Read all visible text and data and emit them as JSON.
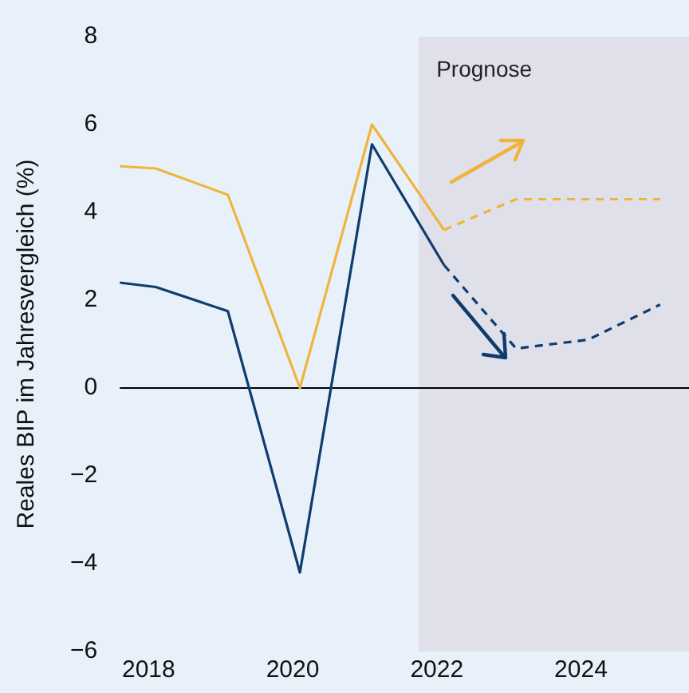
{
  "chart_data": {
    "type": "line",
    "ylabel": "Reales BIP im Jahresvergleich (%)",
    "xlim": [
      2017.6,
      2025.5
    ],
    "xticks": [
      2018,
      2020,
      2022,
      2024
    ],
    "ylim": [
      -6,
      8
    ],
    "yticks": [
      -6,
      -4,
      -2,
      0,
      2,
      4,
      6,
      8
    ],
    "grid": false,
    "legend": false,
    "marker": "none",
    "series": [
      {
        "color": "#f0b43c",
        "line_style": "solid",
        "x": [
          2017.6,
          2018.1,
          2019.1,
          2020.1,
          2021.1,
          2022.1
        ],
        "values": [
          5.05,
          5.0,
          4.4,
          0.0,
          6.0,
          3.6
        ]
      },
      {
        "color": "#f0b43c",
        "line_style": "dashed",
        "x": [
          2022.1,
          2023.1,
          2024.1,
          2025.1
        ],
        "values": [
          3.6,
          4.3,
          4.3,
          4.3
        ]
      },
      {
        "color": "#0f3c6e",
        "line_style": "solid",
        "x": [
          2017.6,
          2018.1,
          2019.1,
          2020.1,
          2021.1,
          2022.1
        ],
        "values": [
          2.4,
          2.3,
          1.75,
          -4.2,
          5.55,
          2.8
        ]
      },
      {
        "color": "#0f3c6e",
        "line_style": "dashed",
        "x": [
          2022.1,
          2023.1,
          2024.1,
          2025.1
        ],
        "values": [
          2.8,
          0.9,
          1.1,
          1.9
        ]
      }
    ],
    "ref_lines": [
      {
        "axis": "y",
        "value": 0,
        "color": "#000000"
      }
    ],
    "bands": [
      {
        "axis": "x",
        "from": 2021.75,
        "to": 2025.5,
        "label": "Prognose",
        "color": "#e0e0ea"
      }
    ]
  }
}
